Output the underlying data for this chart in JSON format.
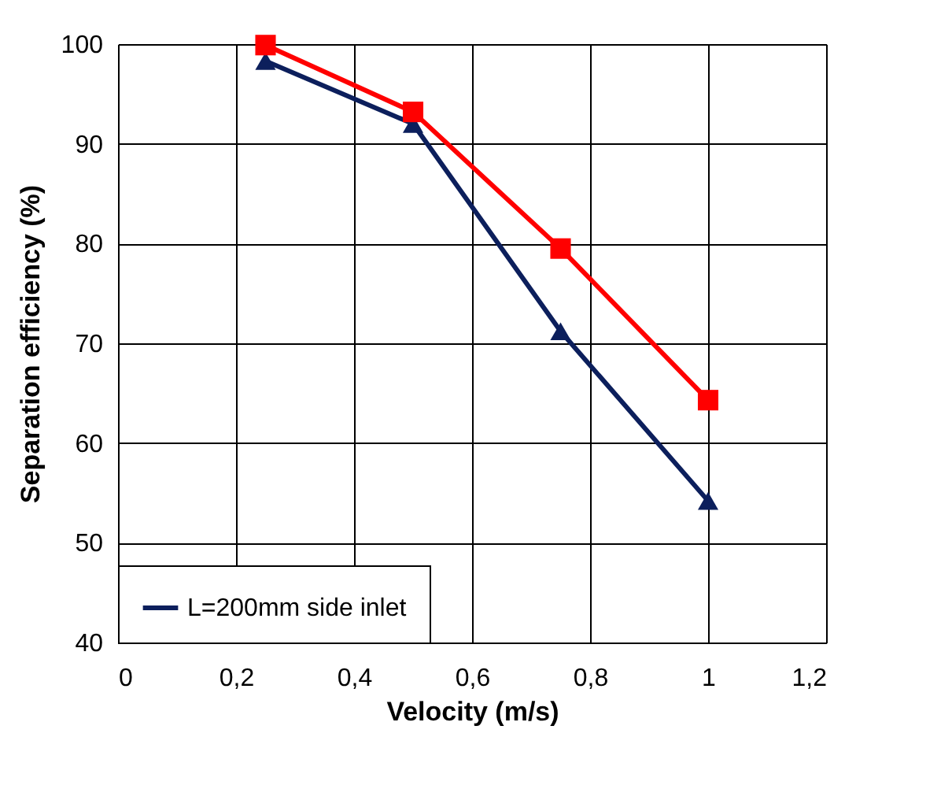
{
  "chart_data": {
    "type": "line",
    "xlabel": "Velocity (m/s)",
    "ylabel": "Separation efficiency (%)",
    "xlim": [
      0,
      1.2
    ],
    "xticks": [
      0,
      {
        "value": 0.2,
        "label": "0,2"
      },
      {
        "value": 0.4,
        "label": "0,4"
      },
      {
        "value": 0.6,
        "label": "0,6"
      },
      {
        "value": 0.8,
        "label": "0,8"
      },
      1,
      {
        "value": 1.2,
        "label": "1,2"
      }
    ],
    "ylim": [
      40,
      100
    ],
    "yticks": [
      40,
      50,
      60,
      70,
      80,
      90,
      100
    ],
    "grid": true,
    "legend": "bottom left",
    "line_style": "solid",
    "series": [
      {
        "name": "L=200mm side inlet",
        "color": "#0c1f5c",
        "marker": "triangle",
        "x": [
          0.25,
          0.5,
          0.75,
          1
        ],
        "values": [
          98.3,
          92,
          71.2,
          54.2
        ]
      },
      {
        "color": "#ff0000",
        "marker": "square",
        "x": [
          0.25,
          0.5,
          0.75,
          1
        ],
        "values": [
          99.9,
          93.2,
          79.5,
          64.3
        ]
      }
    ]
  }
}
